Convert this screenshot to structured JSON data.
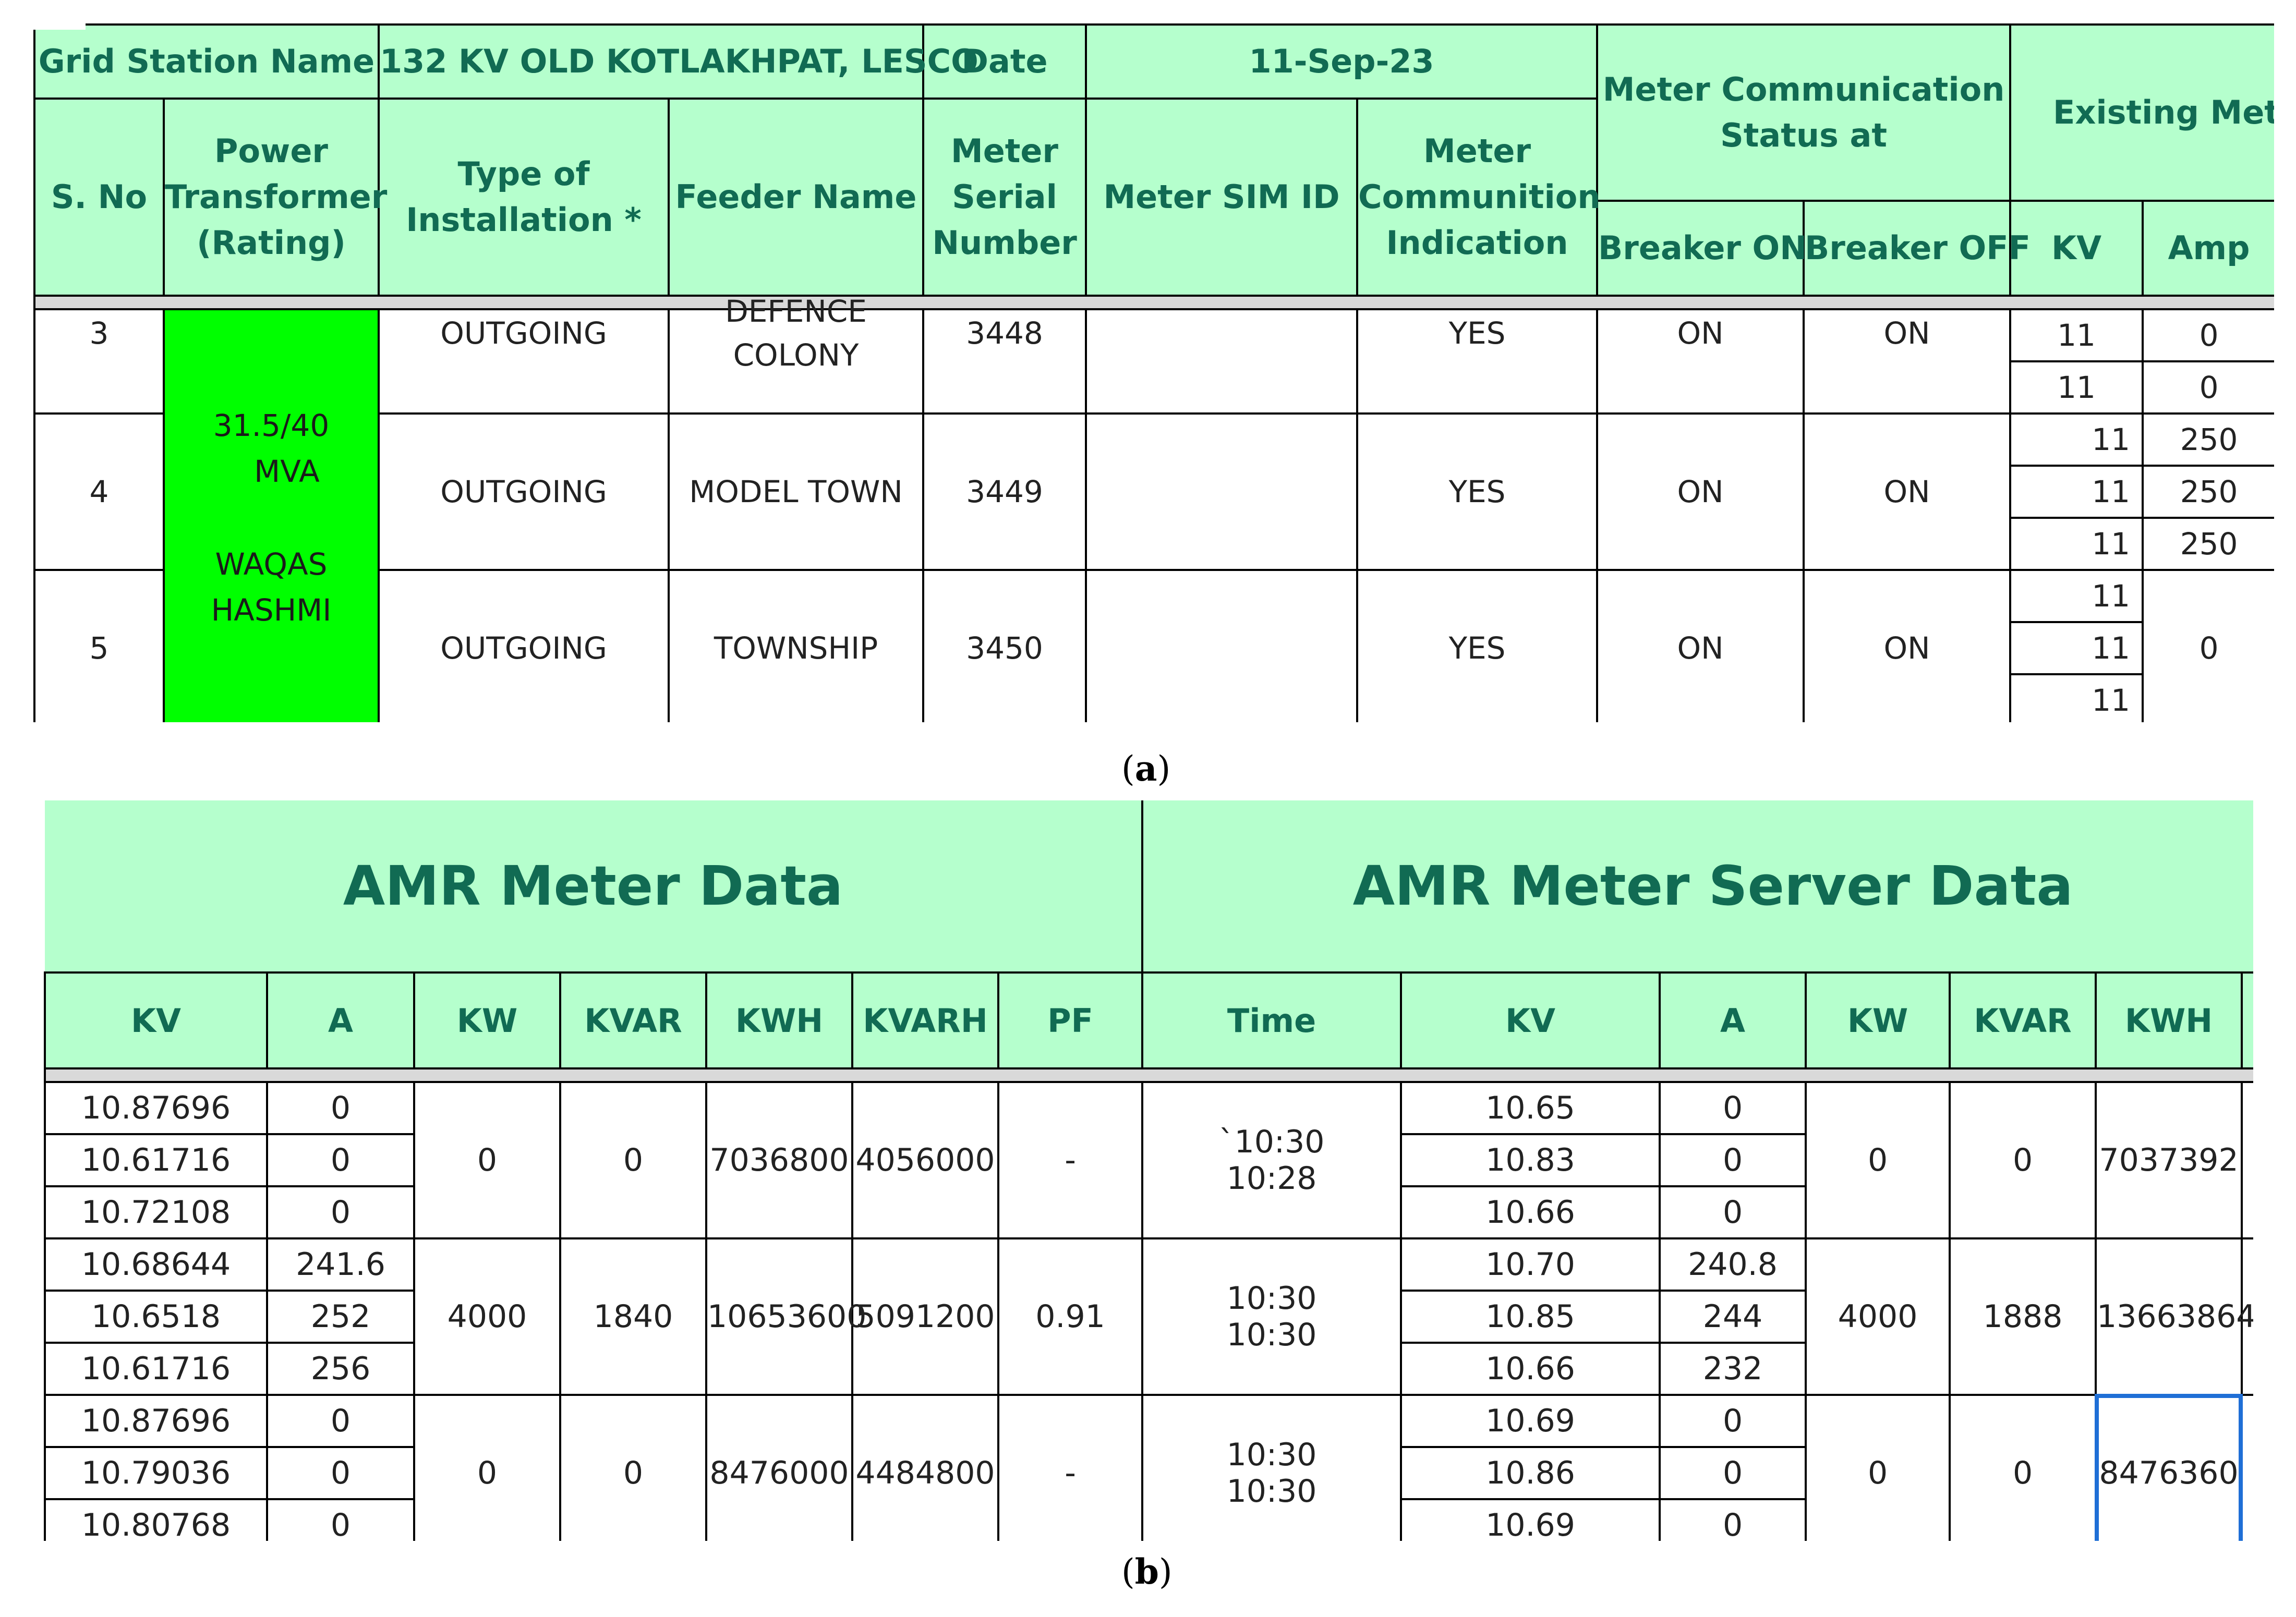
{
  "panel_a": {
    "header_row1": {
      "grid_station_label": "Grid Station Name",
      "grid_station_value": "132 KV OLD KOTLAKHPAT, LESCO",
      "date_label": "Date",
      "date_value": "11-Sep-23",
      "comm_status_label": "Meter Communication Status at",
      "existing_label": "Existing Meteri"
    },
    "header_row2": {
      "s_no": "S. No",
      "power_transformer": "Power Transformer (Rating)",
      "type_of_installation": "Type of Installation *",
      "feeder_name": "Feeder Name",
      "meter_serial": "Meter Serial Number",
      "meter_sim": "Meter SIM ID",
      "meter_comm": "Meter Communition Indication",
      "breaker_on": "Breaker ON",
      "breaker_off": "Breaker OFF",
      "kv": "KV",
      "amp": "Amp"
    },
    "transformer": {
      "rating_line1": "31.5/40",
      "rating_line2": "MVA",
      "name_line1": "WAQAS",
      "name_line2": "HASHMI"
    },
    "rows": [
      {
        "s_no": "3",
        "type": "OUTGOING",
        "feeder_line1": "DEFENCE",
        "feeder_line2": "COLONY",
        "serial": "3448",
        "sim": "",
        "comm": "YES",
        "breaker_on": "ON",
        "breaker_off": "ON",
        "kv": [
          "11",
          "11"
        ],
        "amp": [
          "0",
          "0"
        ]
      },
      {
        "s_no": "4",
        "type": "OUTGOING",
        "feeder_line1": "MODEL TOWN",
        "feeder_line2": "",
        "serial": "3449",
        "sim": "",
        "comm": "YES",
        "breaker_on": "ON",
        "breaker_off": "ON",
        "kv": [
          "11",
          "11",
          "11"
        ],
        "amp": [
          "250",
          "250",
          "250"
        ]
      },
      {
        "s_no": "5",
        "type": "OUTGOING",
        "feeder_line1": "TOWNSHIP",
        "feeder_line2": "",
        "serial": "3450",
        "sim": "",
        "comm": "YES",
        "breaker_on": "ON",
        "breaker_off": "ON",
        "kv": [
          "11",
          "11",
          "11"
        ],
        "amp": [
          "0"
        ]
      }
    ],
    "caption": "a"
  },
  "panel_b": {
    "amr_title": "AMR Meter Data",
    "server_title": "AMR Meter Server Data",
    "amr_cols": [
      "KV",
      "A",
      "KW",
      "KVAR",
      "KWH",
      "KVARH",
      "PF"
    ],
    "server_cols": [
      "Time",
      "KV",
      "A",
      "KW",
      "KVAR",
      "KWH"
    ],
    "groups": [
      {
        "amr_kv": [
          "10.87696",
          "10.61716",
          "10.72108"
        ],
        "amr_a": [
          "0",
          "0",
          "0"
        ],
        "amr_kw": "0",
        "amr_kvar": "0",
        "amr_kwh": "7036800",
        "amr_kvarh": "4056000",
        "amr_pf": "-",
        "time_line1": "`10:30",
        "time_line2": "10:28",
        "srv_kv": [
          "10.65",
          "10.83",
          "10.66"
        ],
        "srv_a": [
          "0",
          "0",
          "0"
        ],
        "srv_kw": "0",
        "srv_kvar": "0",
        "srv_kwh": "7037392"
      },
      {
        "amr_kv": [
          "10.68644",
          "10.6518",
          "10.61716"
        ],
        "amr_a": [
          "241.6",
          "252",
          "256"
        ],
        "amr_kw": "4000",
        "amr_kvar": "1840",
        "amr_kwh": "10653600",
        "amr_kvarh": "5091200",
        "amr_pf": "0.91",
        "time_line1": "10:30",
        "time_line2": "10:30",
        "srv_kv": [
          "10.70",
          "10.85",
          "10.66"
        ],
        "srv_a": [
          "240.8",
          "244",
          "232"
        ],
        "srv_kw": "4000",
        "srv_kvar": "1888",
        "srv_kwh": "13663864"
      },
      {
        "amr_kv": [
          "10.87696",
          "10.79036",
          "10.80768"
        ],
        "amr_a": [
          "0",
          "0",
          "0"
        ],
        "amr_kw": "0",
        "amr_kvar": "0",
        "amr_kwh": "8476000",
        "amr_kvarh": "4484800",
        "amr_pf": "-",
        "time_line1": "10:30",
        "time_line2": "10:30",
        "srv_kv": [
          "10.69",
          "10.86",
          "10.69"
        ],
        "srv_a": [
          "0",
          "0",
          "0"
        ],
        "srv_kw": "0",
        "srv_kvar": "0",
        "srv_kwh": "8476360"
      }
    ],
    "caption": "b"
  }
}
